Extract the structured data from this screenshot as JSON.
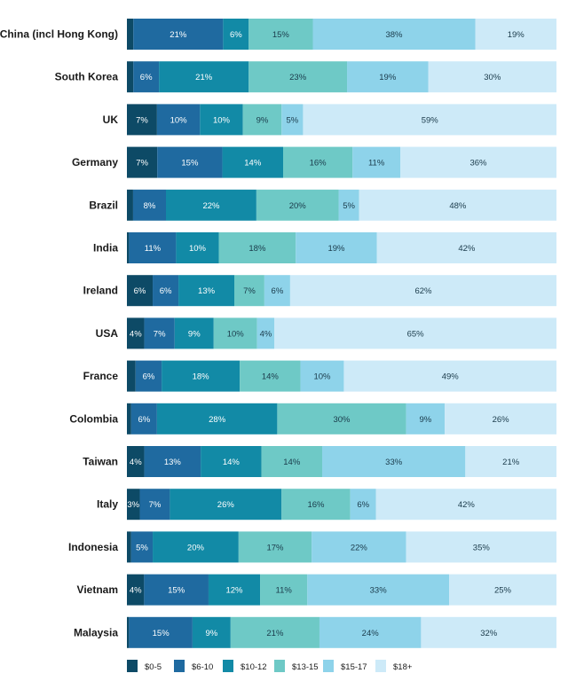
{
  "chart_data": {
    "type": "bar",
    "orientation": "horizontal",
    "stacked": true,
    "normalized": true,
    "title": "",
    "xlabel": "",
    "ylabel": "",
    "xlim": [
      0,
      100
    ],
    "grid": false,
    "legend_placement": "bottom-left",
    "categories": [
      "China (incl Hong Kong)",
      "South Korea",
      "UK",
      "Germany",
      "Brazil",
      "India",
      "Ireland",
      "USA",
      "France",
      "Colombia",
      "Taiwan",
      "Italy",
      "Indonesia",
      "Vietnam",
      "Malaysia"
    ],
    "series": [
      {
        "name": "$0-5",
        "color": "#0d4a66",
        "text_color": "#ffffff",
        "values": [
          1.5,
          1.5,
          7,
          7,
          1.5,
          0.5,
          6,
          4,
          2,
          1,
          4,
          3,
          1,
          4,
          0.5
        ]
      },
      {
        "name": "$6-10",
        "color": "#1f6aa0",
        "text_color": "#ffffff",
        "values": [
          21,
          6,
          10,
          15,
          8,
          11,
          6,
          7,
          6,
          6,
          13,
          7,
          5,
          15,
          15
        ]
      },
      {
        "name": "$10-12",
        "color": "#128aa6",
        "text_color": "#ffffff",
        "values": [
          6,
          21,
          10,
          14,
          22,
          10,
          13,
          9,
          18,
          28,
          14,
          26,
          20,
          12,
          9
        ]
      },
      {
        "name": "$13-15",
        "color": "#6ec9c6",
        "text_color": "#1a3a4a",
        "values": [
          15,
          23,
          9,
          16,
          20,
          18,
          7,
          10,
          14,
          30,
          14,
          16,
          17,
          11,
          21
        ]
      },
      {
        "name": "$15-17",
        "color": "#8ed3ea",
        "text_color": "#1a3a4a",
        "values": [
          38,
          19,
          5,
          11,
          5,
          19,
          6,
          4,
          10,
          9,
          33,
          6,
          22,
          33,
          24
        ]
      },
      {
        "name": "$18+",
        "color": "#cdeaf8",
        "text_color": "#1a3a4a",
        "values": [
          19,
          30,
          59,
          36,
          48,
          42,
          62,
          65,
          49,
          26,
          21,
          42,
          35,
          25,
          32
        ]
      }
    ],
    "data_labels": [
      [
        "",
        "21%",
        "6%",
        "15%",
        "38%",
        "19%"
      ],
      [
        "",
        "6%",
        "21%",
        "23%",
        "19%",
        "30%"
      ],
      [
        "7%",
        "10%",
        "10%",
        "9%",
        "5%",
        "59%"
      ],
      [
        "7%",
        "15%",
        "14%",
        "16%",
        "11%",
        "36%"
      ],
      [
        "",
        "8%",
        "22%",
        "20%",
        "5%",
        "48%"
      ],
      [
        "",
        "11%",
        "10%",
        "18%",
        "19%",
        "42%"
      ],
      [
        "6%",
        "6%",
        "13%",
        "7%",
        "6%",
        "62%"
      ],
      [
        "4%",
        "7%",
        "9%",
        "10%",
        "4%",
        "65%"
      ],
      [
        "",
        "6%",
        "18%",
        "14%",
        "10%",
        "49%"
      ],
      [
        "",
        "6%",
        "28%",
        "30%",
        "9%",
        "26%"
      ],
      [
        "4%",
        "13%",
        "14%",
        "14%",
        "33%",
        "21%"
      ],
      [
        "3%",
        "7%",
        "26%",
        "16%",
        "6%",
        "42%"
      ],
      [
        "",
        "5%",
        "20%",
        "17%",
        "22%",
        "35%"
      ],
      [
        "4%",
        "15%",
        "12%",
        "11%",
        "33%",
        "25%"
      ],
      [
        "",
        "15%",
        "9%",
        "21%",
        "24%",
        "32%"
      ]
    ]
  }
}
